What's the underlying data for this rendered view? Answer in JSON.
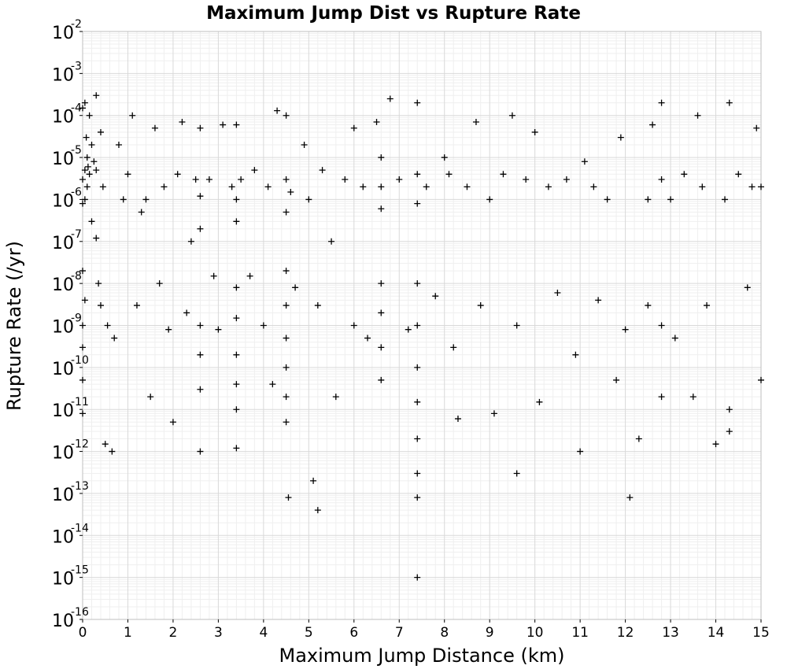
{
  "chart_data": {
    "type": "scatter",
    "title": "Maximum Jump Dist vs Rupture Rate",
    "xlabel": "Maximum Jump Distance (km)",
    "ylabel": "Rupture Rate (/yr)",
    "xlim": [
      0,
      15
    ],
    "ylim": [
      1e-16,
      0.01
    ],
    "yscale": "log",
    "marker": "+",
    "marker_color": "#000000",
    "grid": true,
    "x_ticks": [
      0,
      1,
      2,
      3,
      4,
      5,
      6,
      7,
      8,
      9,
      10,
      11,
      12,
      13,
      14,
      15
    ],
    "y_ticks": [
      {
        "base": "10",
        "exp": "-2",
        "value": 0.01
      },
      {
        "base": "10",
        "exp": "-3",
        "value": 0.001
      },
      {
        "base": "10",
        "exp": "-4",
        "value": 0.0001
      },
      {
        "base": "10",
        "exp": "-5",
        "value": 1e-05
      },
      {
        "base": "10",
        "exp": "-6",
        "value": 1e-06
      },
      {
        "base": "10",
        "exp": "-7",
        "value": 1e-07
      },
      {
        "base": "10",
        "exp": "-8",
        "value": 1e-08
      },
      {
        "base": "10",
        "exp": "-9",
        "value": 1e-09
      },
      {
        "base": "10",
        "exp": "-10",
        "value": 1e-10
      },
      {
        "base": "10",
        "exp": "-11",
        "value": 1e-11
      },
      {
        "base": "10",
        "exp": "-12",
        "value": 1e-12
      },
      {
        "base": "10",
        "exp": "-13",
        "value": 1e-13
      },
      {
        "base": "10",
        "exp": "-14",
        "value": 1e-14
      },
      {
        "base": "10",
        "exp": "-15",
        "value": 1e-15
      },
      {
        "base": "10",
        "exp": "-16",
        "value": 1e-16
      }
    ],
    "series": [
      {
        "points": [
          [
            0.0,
            0.00015
          ],
          [
            0.0,
            3e-06
          ],
          [
            0.0,
            8e-07
          ],
          [
            0.0,
            2e-08
          ],
          [
            0.0,
            1e-09
          ],
          [
            0.0,
            3e-10
          ],
          [
            0.0,
            5e-11
          ],
          [
            0.0,
            8e-12
          ],
          [
            0.05,
            0.0002
          ],
          [
            0.05,
            5e-06
          ],
          [
            0.05,
            1e-06
          ],
          [
            0.05,
            4e-09
          ],
          [
            0.08,
            3e-05
          ],
          [
            0.1,
            1e-05
          ],
          [
            0.1,
            2e-06
          ],
          [
            0.12,
            6e-06
          ],
          [
            0.15,
            0.0001
          ],
          [
            0.15,
            4e-06
          ],
          [
            0.2,
            2e-05
          ],
          [
            0.2,
            3e-07
          ],
          [
            0.25,
            8e-06
          ],
          [
            0.3,
            0.0003
          ],
          [
            0.3,
            5e-06
          ],
          [
            0.3,
            1.2e-07
          ],
          [
            0.35,
            1e-08
          ],
          [
            0.4,
            4e-05
          ],
          [
            0.4,
            3e-09
          ],
          [
            0.45,
            2e-06
          ],
          [
            0.5,
            1.5e-12
          ],
          [
            0.55,
            1e-09
          ],
          [
            0.65,
            1e-12
          ],
          [
            0.7,
            5e-10
          ],
          [
            0.8,
            2e-05
          ],
          [
            0.9,
            1e-06
          ],
          [
            1.0,
            4e-06
          ],
          [
            1.1,
            0.0001
          ],
          [
            1.2,
            3e-09
          ],
          [
            1.3,
            5e-07
          ],
          [
            1.4,
            1e-06
          ],
          [
            1.5,
            2e-11
          ],
          [
            1.6,
            5e-05
          ],
          [
            1.7,
            1e-08
          ],
          [
            1.8,
            2e-06
          ],
          [
            1.9,
            8e-10
          ],
          [
            2.0,
            5e-12
          ],
          [
            2.1,
            4e-06
          ],
          [
            2.2,
            7e-05
          ],
          [
            2.3,
            2e-09
          ],
          [
            2.4,
            1e-07
          ],
          [
            2.5,
            3e-06
          ],
          [
            2.6,
            5e-05
          ],
          [
            2.6,
            1.2e-06
          ],
          [
            2.6,
            2e-07
          ],
          [
            2.6,
            1e-09
          ],
          [
            2.6,
            2e-10
          ],
          [
            2.6,
            3e-11
          ],
          [
            2.6,
            1e-12
          ],
          [
            2.8,
            3e-06
          ],
          [
            2.9,
            1.5e-08
          ],
          [
            3.0,
            8e-10
          ],
          [
            3.1,
            6e-05
          ],
          [
            3.3,
            2e-06
          ],
          [
            3.4,
            6e-05
          ],
          [
            3.4,
            1e-06
          ],
          [
            3.4,
            3e-07
          ],
          [
            3.4,
            8e-09
          ],
          [
            3.4,
            1.5e-09
          ],
          [
            3.4,
            2e-10
          ],
          [
            3.4,
            4e-11
          ],
          [
            3.4,
            1e-11
          ],
          [
            3.4,
            1.2e-12
          ],
          [
            3.5,
            3e-06
          ],
          [
            3.7,
            1.5e-08
          ],
          [
            3.8,
            5e-06
          ],
          [
            4.0,
            1e-09
          ],
          [
            4.1,
            2e-06
          ],
          [
            4.2,
            4e-11
          ],
          [
            4.3,
            0.00013
          ],
          [
            4.5,
            0.0001
          ],
          [
            4.5,
            3e-06
          ],
          [
            4.5,
            5e-07
          ],
          [
            4.5,
            2e-08
          ],
          [
            4.5,
            3e-09
          ],
          [
            4.5,
            5e-10
          ],
          [
            4.5,
            1e-10
          ],
          [
            4.5,
            2e-11
          ],
          [
            4.5,
            5e-12
          ],
          [
            4.55,
            8e-14
          ],
          [
            4.6,
            1.5e-06
          ],
          [
            4.7,
            8e-09
          ],
          [
            4.9,
            2e-05
          ],
          [
            5.0,
            1e-06
          ],
          [
            5.1,
            2e-13
          ],
          [
            5.2,
            4e-14
          ],
          [
            5.2,
            3e-09
          ],
          [
            5.3,
            5e-06
          ],
          [
            5.5,
            1e-07
          ],
          [
            5.6,
            2e-11
          ],
          [
            5.8,
            3e-06
          ],
          [
            6.0,
            5e-05
          ],
          [
            6.0,
            1e-09
          ],
          [
            6.2,
            2e-06
          ],
          [
            6.3,
            5e-10
          ],
          [
            6.5,
            7e-05
          ],
          [
            6.6,
            1e-05
          ],
          [
            6.6,
            2e-06
          ],
          [
            6.6,
            6e-07
          ],
          [
            6.6,
            1e-08
          ],
          [
            6.6,
            2e-09
          ],
          [
            6.6,
            3e-10
          ],
          [
            6.6,
            5e-11
          ],
          [
            6.8,
            0.00025
          ],
          [
            7.0,
            3e-06
          ],
          [
            7.2,
            8e-10
          ],
          [
            7.4,
            0.0002
          ],
          [
            7.4,
            4e-06
          ],
          [
            7.4,
            8e-07
          ],
          [
            7.4,
            1e-08
          ],
          [
            7.4,
            1e-09
          ],
          [
            7.4,
            1e-10
          ],
          [
            7.4,
            1.5e-11
          ],
          [
            7.4,
            2e-12
          ],
          [
            7.4,
            3e-13
          ],
          [
            7.4,
            8e-14
          ],
          [
            7.4,
            1e-15
          ],
          [
            7.6,
            2e-06
          ],
          [
            7.8,
            5e-09
          ],
          [
            8.0,
            1e-05
          ],
          [
            8.1,
            4e-06
          ],
          [
            8.2,
            3e-10
          ],
          [
            8.3,
            6e-12
          ],
          [
            8.5,
            2e-06
          ],
          [
            8.7,
            7e-05
          ],
          [
            8.8,
            3e-09
          ],
          [
            9.0,
            1e-06
          ],
          [
            9.1,
            8e-12
          ],
          [
            9.3,
            4e-06
          ],
          [
            9.5,
            0.0001
          ],
          [
            9.6,
            3e-13
          ],
          [
            9.6,
            1e-09
          ],
          [
            9.8,
            3e-06
          ],
          [
            10.0,
            4e-05
          ],
          [
            10.1,
            1.5e-11
          ],
          [
            10.3,
            2e-06
          ],
          [
            10.5,
            6e-09
          ],
          [
            10.7,
            3e-06
          ],
          [
            10.9,
            2e-10
          ],
          [
            11.0,
            1e-12
          ],
          [
            11.1,
            8e-06
          ],
          [
            11.3,
            2e-06
          ],
          [
            11.4,
            4e-09
          ],
          [
            11.6,
            1e-06
          ],
          [
            11.8,
            5e-11
          ],
          [
            11.9,
            3e-05
          ],
          [
            12.0,
            8e-10
          ],
          [
            12.1,
            8e-14
          ],
          [
            12.3,
            2e-12
          ],
          [
            12.5,
            1e-06
          ],
          [
            12.5,
            3e-09
          ],
          [
            12.6,
            6e-05
          ],
          [
            12.8,
            0.0002
          ],
          [
            12.8,
            3e-06
          ],
          [
            12.8,
            1e-09
          ],
          [
            12.8,
            2e-11
          ],
          [
            13.0,
            1e-06
          ],
          [
            13.1,
            5e-10
          ],
          [
            13.3,
            4e-06
          ],
          [
            13.5,
            2e-11
          ],
          [
            13.6,
            0.0001
          ],
          [
            13.7,
            2e-06
          ],
          [
            13.8,
            3e-09
          ],
          [
            14.0,
            1.5e-12
          ],
          [
            14.2,
            1e-06
          ],
          [
            14.3,
            0.0002
          ],
          [
            14.3,
            3e-12
          ],
          [
            14.3,
            1e-11
          ],
          [
            14.5,
            4e-06
          ],
          [
            14.7,
            8e-09
          ],
          [
            14.8,
            2e-06
          ],
          [
            14.9,
            5e-05
          ],
          [
            15.0,
            2e-06
          ],
          [
            15.0,
            5e-11
          ]
        ]
      }
    ]
  }
}
